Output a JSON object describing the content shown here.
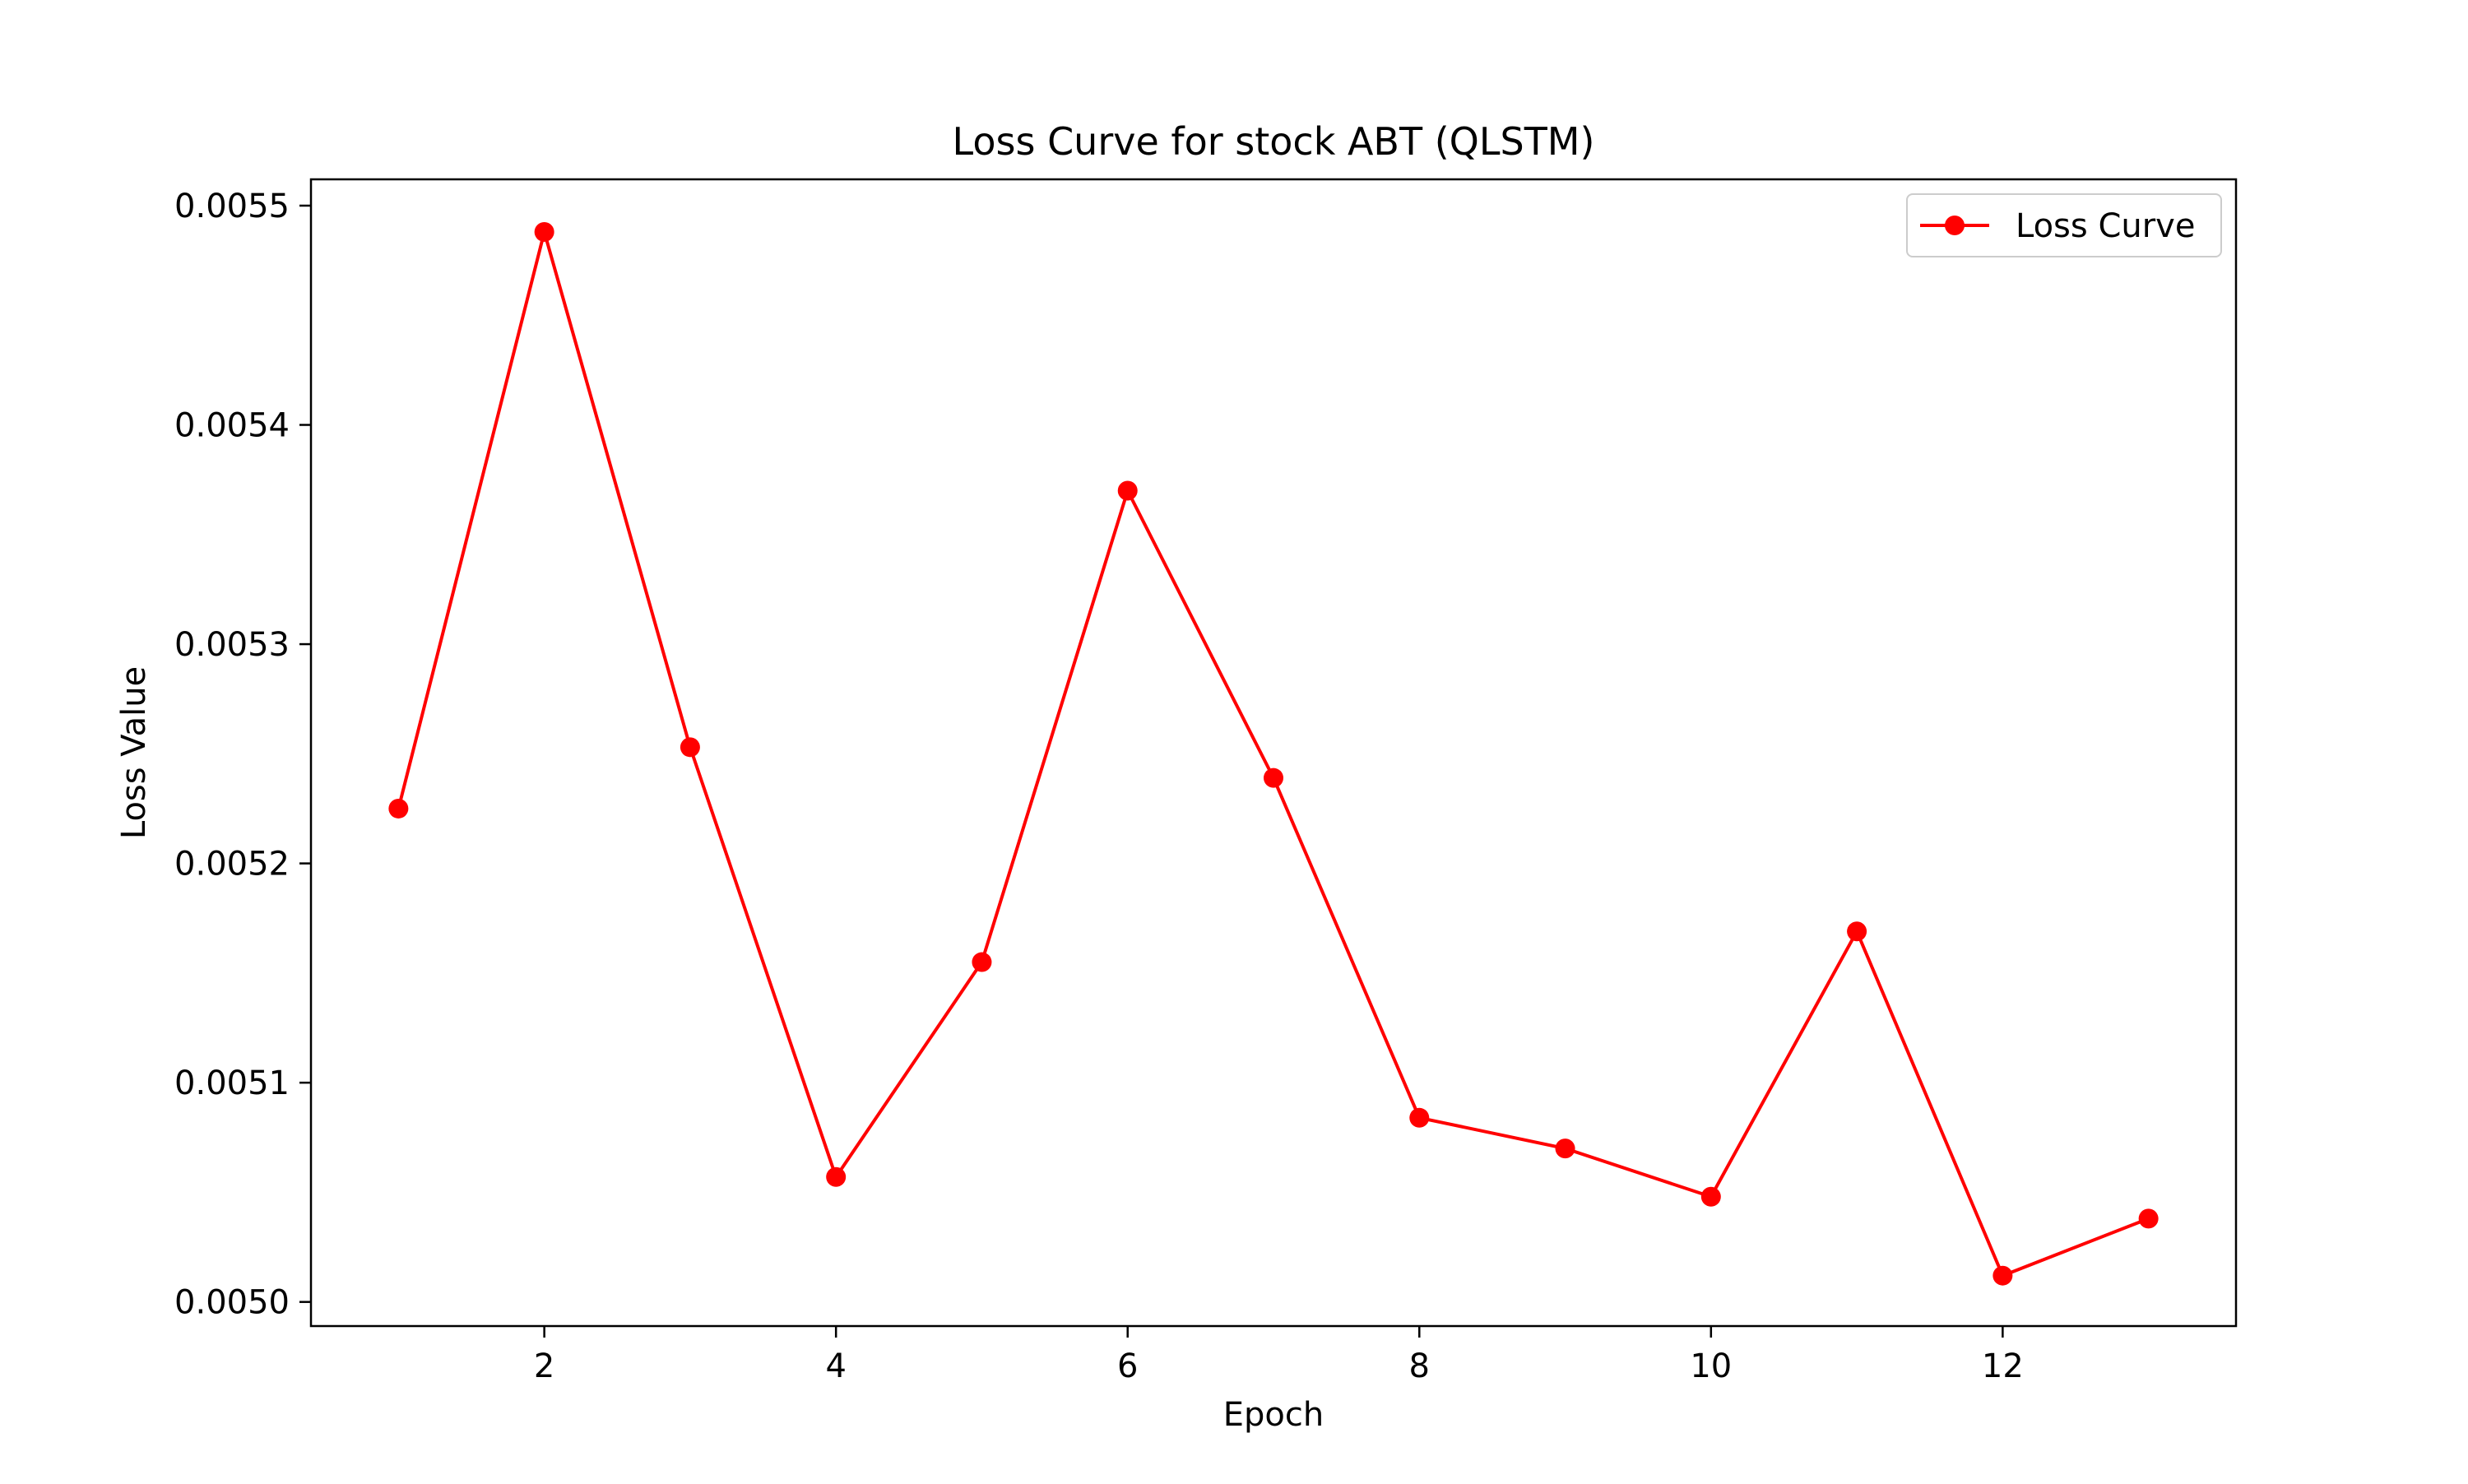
{
  "chart_data": {
    "type": "line",
    "title": "Loss Curve for stock ABT (QLSTM)",
    "xlabel": "Epoch",
    "ylabel": "Loss Value",
    "x": [
      1,
      2,
      3,
      4,
      5,
      6,
      7,
      8,
      9,
      10,
      11,
      12,
      13
    ],
    "series": [
      {
        "name": "Loss Curve",
        "color": "#ff0000",
        "marker": "circle",
        "values": [
          0.005225,
          0.005488,
          0.005253,
          0.005057,
          0.005155,
          0.00537,
          0.005239,
          0.005084,
          0.00507,
          0.005048,
          0.005169,
          0.005012,
          0.005038
        ]
      }
    ],
    "xlim": [
      0.4,
      13.6
    ],
    "ylim": [
      0.004989,
      0.005512
    ],
    "xticks": [
      2,
      4,
      6,
      8,
      10,
      12
    ],
    "xtick_labels": [
      "2",
      "4",
      "6",
      "8",
      "10",
      "12"
    ],
    "yticks": [
      0.005,
      0.0051,
      0.0052,
      0.0053,
      0.0054,
      0.0055
    ],
    "ytick_labels": [
      "0.0050",
      "0.0051",
      "0.0052",
      "0.0053",
      "0.0054",
      "0.0055"
    ],
    "grid": false,
    "legend_position": "top-right"
  }
}
